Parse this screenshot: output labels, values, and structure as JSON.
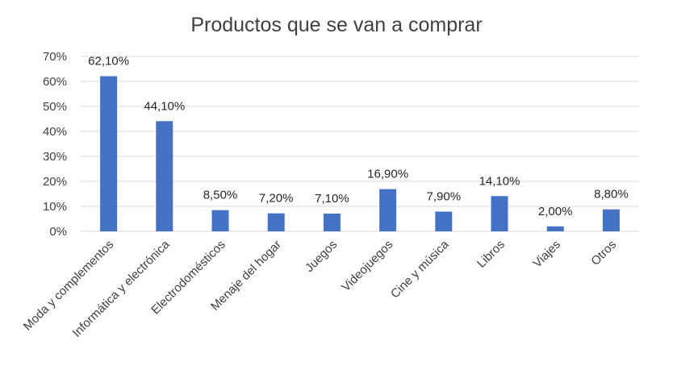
{
  "chart_data": {
    "type": "bar",
    "title": "Productos que se van a comprar",
    "xlabel": "",
    "ylabel": "",
    "ylim": [
      0,
      70
    ],
    "ytick_values": [
      0,
      10,
      20,
      30,
      40,
      50,
      60,
      70
    ],
    "ytick_labels": [
      "0%",
      "10%",
      "20%",
      "30%",
      "40%",
      "50%",
      "60%",
      "70%"
    ],
    "grid": true,
    "legend": "none",
    "bar_color": "#4472c4",
    "categories": [
      "Moda y complementos",
      "Informática y electrónica",
      "Electrodomésticos",
      "Menaje del hogar",
      "Juegos",
      "Videojuegos",
      "Cine y música",
      "Libros",
      "Viajes",
      "Otros"
    ],
    "values": [
      62.1,
      44.1,
      8.5,
      7.2,
      7.1,
      16.9,
      7.9,
      14.1,
      2.0,
      8.8
    ],
    "data_labels": [
      "62,10%",
      "44,10%",
      "8,50%",
      "7,20%",
      "7,10%",
      "16,90%",
      "7,90%",
      "14,10%",
      "2,00%",
      "8,80%"
    ]
  }
}
